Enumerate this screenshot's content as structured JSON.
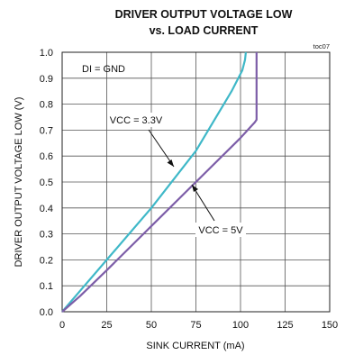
{
  "chart_data": {
    "type": "line",
    "title": "DRIVER OUTPUT VOLTAGE LOW",
    "subtitle": "vs. LOAD CURRENT",
    "tag": "toc07",
    "xlabel": "SINK CURRENT (mA)",
    "ylabel": "DRIVER OUTPUT VOLTAGE LOW (V)",
    "xlim": [
      0,
      150
    ],
    "ylim": [
      0,
      1.0
    ],
    "x_ticks": [
      "0",
      "25",
      "50",
      "75",
      "100",
      "125",
      "150"
    ],
    "y_ticks": [
      "0.0",
      "0.1",
      "0.2",
      "0.3",
      "0.4",
      "0.5",
      "0.6",
      "0.7",
      "0.8",
      "0.9",
      "1.0"
    ],
    "grid": true,
    "condition_label": "DI = GND",
    "series": [
      {
        "name": "VCC = 3.3V",
        "color": "#3fb8c8",
        "x": [
          0,
          10,
          25,
          50,
          75,
          95,
          101,
          102.5,
          103
        ],
        "y": [
          0,
          0.08,
          0.2,
          0.4,
          0.62,
          0.85,
          0.93,
          0.97,
          1.0
        ]
      },
      {
        "name": "VCC = 5V",
        "color": "#7d5ea8",
        "x": [
          0,
          10,
          25,
          50,
          75,
          100,
          108,
          109,
          109
        ],
        "y": [
          0,
          0.06,
          0.16,
          0.33,
          0.5,
          0.67,
          0.73,
          0.74,
          1.0
        ]
      }
    ],
    "annotations": [
      {
        "text": "VCC = 3.3V",
        "series": 0,
        "x": 60,
        "y": 0.48
      },
      {
        "text": "VCC = 5V",
        "series": 1,
        "x": 78,
        "y": 0.49
      }
    ]
  }
}
